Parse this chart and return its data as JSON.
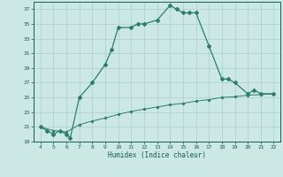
{
  "xlabel": "Humidex (Indice chaleur)",
  "x_main": [
    4,
    4.5,
    5,
    5.5,
    6,
    6.3,
    7,
    8,
    9,
    9.5,
    10,
    11,
    11.5,
    12,
    13,
    14,
    14.5,
    15,
    15.5,
    16,
    17,
    18,
    18.5,
    19,
    20,
    20.5,
    21,
    22
  ],
  "y_main": [
    21,
    20.5,
    20,
    20.5,
    20,
    19.5,
    25,
    27,
    29.5,
    31.5,
    34.5,
    34.5,
    35,
    35,
    35.5,
    37.5,
    37,
    36.5,
    36.5,
    36.5,
    32,
    27.5,
    27.5,
    27,
    25.5,
    26,
    25.5,
    25.5
  ],
  "x_base": [
    4,
    5,
    6,
    7,
    8,
    9,
    10,
    11,
    12,
    13,
    14,
    15,
    16,
    17,
    18,
    19,
    20,
    21,
    22
  ],
  "y_base": [
    21,
    20.5,
    20.3,
    21.3,
    21.8,
    22.2,
    22.7,
    23.1,
    23.4,
    23.7,
    24.0,
    24.2,
    24.5,
    24.7,
    25.0,
    25.1,
    25.3,
    25.4,
    25.5
  ],
  "line_color": "#2d7d6e",
  "bg_color": "#cce8e4",
  "grid_color": "#aacfcc",
  "text_color": "#1a5c56",
  "xlim": [
    3.5,
    22.5
  ],
  "ylim": [
    19,
    38
  ],
  "yticks": [
    19,
    21,
    23,
    25,
    27,
    29,
    31,
    33,
    35,
    37
  ],
  "xticks": [
    4,
    5,
    6,
    7,
    8,
    9,
    10,
    11,
    12,
    13,
    14,
    15,
    16,
    17,
    18,
    19,
    20,
    21,
    22
  ]
}
